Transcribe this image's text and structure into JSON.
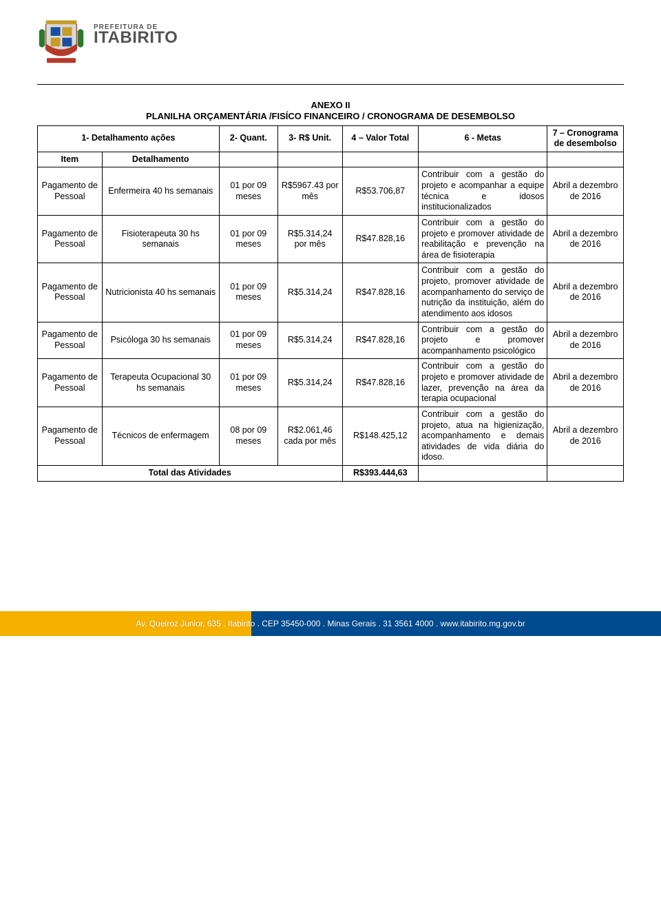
{
  "header": {
    "prefix": "PREFEITURA DE",
    "city": "ITABIRITO"
  },
  "document": {
    "title_line1": "ANEXO II",
    "title_line2": "PLANILHA ORÇAMENTÁRIA /FISÍCO FINANCEIRO / CRONOGRAMA DE DESEMBOLSO"
  },
  "table": {
    "columns": [
      "1- Detalhamento ações",
      "2- Quant.",
      "3- R$ Unit.",
      "4 – Valor Total",
      "6 - Metas",
      "7 – Cronograma de desembolso"
    ],
    "sub_header": {
      "item": "Item",
      "detalhamento": "Detalhamento"
    },
    "total_label": "Total das Atividades",
    "total_value": "R$393.444,63",
    "rows": [
      {
        "item": "Pagamento de Pessoal",
        "detalhamento": "Enfermeira 40 hs semanais",
        "quant": "01 por 09 meses",
        "unit": "R$5967.43 por mês",
        "total": "R$53.706,87",
        "metas": "Contribuir com a gestão do projeto e acompanhar a equipe técnica e idosos institucionalizados",
        "crono": "Abril a dezembro de 2016"
      },
      {
        "item": "Pagamento de Pessoal",
        "detalhamento": "Fisioterapeuta 30 hs semanais",
        "quant": "01 por 09 meses",
        "unit": "R$5.314,24 por mês",
        "total": "R$47.828,16",
        "metas": "Contribuir com a gestão do projeto e promover atividade de reabilitação e prevenção na área de fisioterapia",
        "crono": "Abril a dezembro de 2016"
      },
      {
        "item": "Pagamento de Pessoal",
        "detalhamento": "Nutricionista 40 hs semanais",
        "quant": "01 por 09 meses",
        "unit": "R$5.314,24",
        "total": "R$47.828,16",
        "metas": "Contribuir com a gestão do projeto, promover atividade de acompanhamento do serviço de nutrição da instituição, além do atendimento aos idosos",
        "crono": "Abril a dezembro de 2016"
      },
      {
        "item": "Pagamento de Pessoal",
        "detalhamento": "Psicóloga 30 hs semanais",
        "quant": "01 por 09 meses",
        "unit": "R$5.314,24",
        "total": "R$47.828,16",
        "metas": "Contribuir com a gestão do projeto e promover acompanhamento psicológico",
        "crono": "Abril a dezembro de 2016"
      },
      {
        "item": "Pagamento de Pessoal",
        "detalhamento": "Terapeuta Ocupacional 30 hs semanais",
        "quant": "01 por 09 meses",
        "unit": "R$5.314,24",
        "total": "R$47.828,16",
        "metas": "Contribuir com a gestão do projeto e promover atividade de lazer, prevenção na área da terapia ocupacional",
        "crono": "Abril a dezembro de 2016"
      },
      {
        "item": "Pagamento de Pessoal",
        "detalhamento": "Técnicos de enfermagem",
        "quant": "08 por 09 meses",
        "unit": "R$2.061,46 cada por mês",
        "total": "R$148.425,12",
        "metas": "Contribuir com a gestão do projeto, atua na higienização, acompanhamento e demais atividades de vida diária do idoso.",
        "crono": "Abril a dezembro de 2016"
      }
    ],
    "column_widths_pct": [
      11,
      20,
      10,
      11,
      13,
      22,
      13
    ],
    "border_color": "#000000",
    "font_size_pt": 10
  },
  "footer": {
    "line": "Av. Queiroz Junior, 635 . Itabirito . CEP 35450-000 . Minas Gerais . 31 3561 4000 . www.itabirito.mg.gov.br",
    "yellow": "#f6b100",
    "blue": "#004a8f"
  }
}
